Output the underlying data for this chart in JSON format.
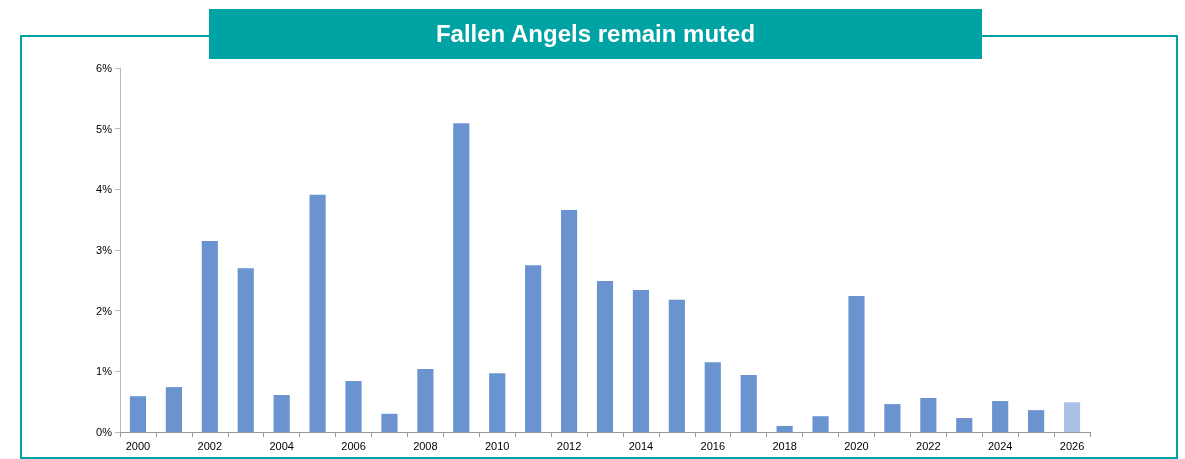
{
  "chart_data": {
    "type": "bar",
    "title": "Fallen Angels remain muted",
    "categories": [
      "2000",
      null,
      "2002",
      null,
      "2004",
      null,
      "2006",
      null,
      "2008",
      null,
      "2010",
      null,
      "2012",
      null,
      "2014",
      null,
      "2016",
      null,
      "2018",
      null,
      "2020",
      null,
      "2022",
      null,
      "2024",
      null,
      "2026"
    ],
    "values": [
      0.59,
      0.74,
      3.15,
      2.7,
      0.61,
      3.91,
      0.84,
      0.3,
      1.04,
      5.09,
      0.97,
      2.75,
      3.66,
      2.49,
      2.34,
      2.18,
      1.15,
      0.94,
      0.1,
      0.26,
      2.24,
      0.46,
      0.56,
      0.23,
      0.51,
      0.36,
      0.49
    ],
    "colors": [
      "#6a93d0",
      "#6a93d0",
      "#6a93d0",
      "#6a93d0",
      "#6a93d0",
      "#6a93d0",
      "#6a93d0",
      "#6a93d0",
      "#6a93d0",
      "#6a93d0",
      "#6a93d0",
      "#6a93d0",
      "#6a93d0",
      "#6a93d0",
      "#6a93d0",
      "#6a93d0",
      "#6a93d0",
      "#6a93d0",
      "#6a93d0",
      "#6a93d0",
      "#6a93d0",
      "#6a93d0",
      "#6a93d0",
      "#6a93d0",
      "#6a93d0",
      "#6a93d0",
      "#a9c0e6"
    ],
    "ylim": [
      0,
      6
    ],
    "yticks": [
      {
        "value": 0,
        "label": "0%"
      },
      {
        "value": 1,
        "label": "1%"
      },
      {
        "value": 2,
        "label": "2%"
      },
      {
        "value": 3,
        "label": "3%"
      },
      {
        "value": 4,
        "label": "4%"
      },
      {
        "value": 5,
        "label": "5%"
      },
      {
        "value": 6,
        "label": "6%"
      }
    ],
    "grid": false
  }
}
